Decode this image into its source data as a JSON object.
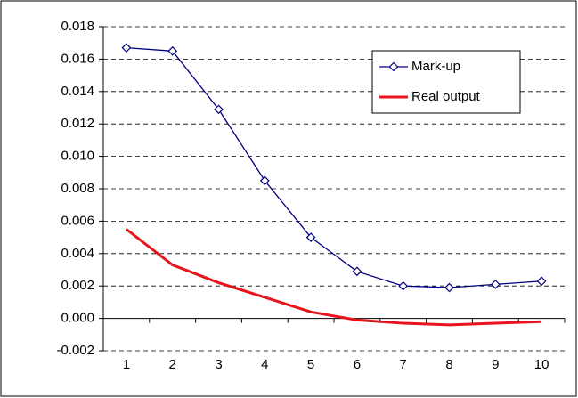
{
  "chart_data": {
    "type": "line",
    "categories": [
      "1",
      "2",
      "3",
      "4",
      "5",
      "6",
      "7",
      "8",
      "9",
      "10"
    ],
    "series": [
      {
        "name": "Mark-up",
        "color": "#000080",
        "marker": "diamond",
        "values": [
          0.0167,
          0.0165,
          0.0129,
          0.0085,
          0.005,
          0.0029,
          0.002,
          0.0019,
          0.0021,
          0.0023
        ]
      },
      {
        "name": "Real output",
        "color": "#e8141b",
        "values": [
          0.0055,
          0.0033,
          0.0022,
          0.0013,
          0.0004,
          -0.0001,
          -0.0003,
          -0.0004,
          -0.0003,
          -0.0002
        ]
      }
    ],
    "ylim": [
      -0.002,
      0.018
    ],
    "yticks": [
      -0.002,
      {
        "value": 0,
        "label": "0.000"
      },
      0.002,
      0.004,
      0.006,
      0.008,
      {
        "value": 0.01,
        "label": "0.010"
      },
      0.012,
      0.014,
      0.016,
      0.018
    ],
    "grid": true,
    "legend": "upper right"
  }
}
